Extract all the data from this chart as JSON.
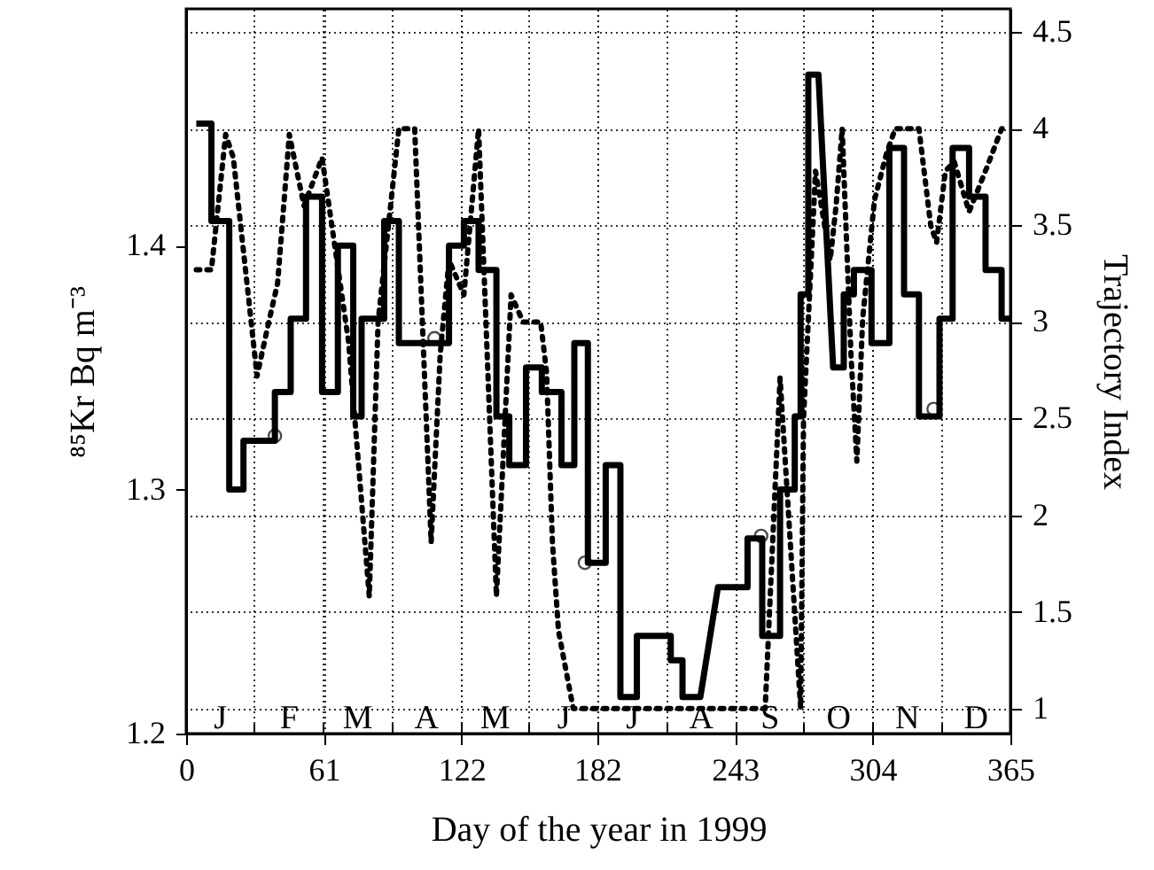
{
  "chart_data": {
    "type": "line",
    "xlabel": "Day of the year in 1999",
    "ylabel": "⁸⁵Kr  Bq m⁻³",
    "y2label": "Trajectory Index",
    "xlim": [
      0,
      365
    ],
    "xticks": [
      0,
      61,
      122,
      182,
      243,
      304,
      365
    ],
    "annotations": [
      "J",
      "F",
      "M",
      "A",
      "M",
      "J",
      "J",
      "A",
      "S",
      "O",
      "N",
      "D"
    ],
    "ylim": [
      1.2,
      1.497
    ],
    "yticks": [
      1.2,
      1.3,
      1.4
    ],
    "y2lim": [
      0.87,
      4.62
    ],
    "y2ticks": [
      1,
      1.5,
      2,
      2.5,
      3,
      3.5,
      4,
      4.5
    ],
    "grid": true,
    "series": [
      {
        "color": "#000000",
        "line_style": "solid",
        "x": [
          4.5,
          11.2,
          11.2,
          19.1,
          19.1,
          25.4,
          25.4,
          39.3,
          39.3,
          46.3,
          46.3,
          53.1,
          53.1,
          60.2,
          60.2,
          67.2,
          67.2,
          74,
          74,
          77.7,
          77.7,
          87.7,
          87.7,
          94.2,
          94.2,
          116.4,
          116.4,
          123,
          123,
          129.5,
          129.5,
          137.4,
          137.4,
          143.1,
          143.1,
          150.5,
          150.5,
          157.5,
          157.5,
          166.2,
          166.2,
          171.9,
          171.9,
          177.9,
          177.9,
          185.8,
          185.8,
          192.3,
          192.3,
          199.6,
          199.6,
          214.6,
          214.6,
          219.8,
          219.8,
          227.7,
          235.5,
          248.6,
          248.6,
          255.1,
          255.1,
          263,
          263,
          269.5,
          269.5,
          272.1,
          272.1,
          275.5,
          275.5,
          280,
          286.5,
          291.2,
          291.2,
          295.7,
          295.7,
          303.5,
          303.5,
          311.4,
          311.4,
          317.9,
          317.9,
          324.5,
          324.5,
          333.6,
          333.6,
          339.4,
          339.4,
          346.7,
          346.7,
          354,
          354,
          361.1,
          361.1,
          365
        ],
        "values": [
          1.45,
          1.45,
          1.41,
          1.41,
          1.3,
          1.3,
          1.32,
          1.32,
          1.34,
          1.34,
          1.37,
          1.37,
          1.42,
          1.42,
          1.34,
          1.34,
          1.4,
          1.4,
          1.33,
          1.33,
          1.37,
          1.37,
          1.41,
          1.41,
          1.36,
          1.36,
          1.4,
          1.4,
          1.41,
          1.41,
          1.39,
          1.39,
          1.33,
          1.33,
          1.31,
          1.31,
          1.35,
          1.35,
          1.34,
          1.34,
          1.31,
          1.31,
          1.36,
          1.36,
          1.27,
          1.27,
          1.31,
          1.31,
          1.215,
          1.215,
          1.24,
          1.24,
          1.23,
          1.23,
          1.215,
          1.215,
          1.26,
          1.26,
          1.28,
          1.28,
          1.24,
          1.24,
          1.3,
          1.3,
          1.33,
          1.33,
          1.38,
          1.38,
          1.47,
          1.47,
          1.35,
          1.35,
          1.38,
          1.38,
          1.39,
          1.39,
          1.36,
          1.36,
          1.44,
          1.44,
          1.38,
          1.38,
          1.33,
          1.33,
          1.37,
          1.37,
          1.44,
          1.44,
          1.42,
          1.42,
          1.39,
          1.39,
          1.37,
          1.37
        ]
      },
      {
        "color": "#000000",
        "line_style": "dotted",
        "axis": "y2",
        "x": [
          4.5,
          11.2,
          17.5,
          20.9,
          31.4,
          36.6,
          40.5,
          45.7,
          52.2,
          60.2,
          71.9,
          81.1,
          85,
          94.2,
          101.2,
          108.5,
          112.5,
          116.4,
          123,
          129.5,
          137.4,
          143.9,
          149.2,
          157,
          159.6,
          162.2,
          164.9,
          171.4,
          256.4,
          263,
          272.1,
          273.4,
          278.7,
          281.3,
          285.2,
          287.8,
          290.5,
          294.4,
          297,
          299.6,
          304.8,
          310.1,
          314,
          324.5,
          329.7,
          332.3,
          336.2,
          340.1,
          346.7,
          354.6,
          361.1,
          363.7
        ],
        "values": [
          3.27,
          3.27,
          3.97,
          3.85,
          2.72,
          3.0,
          3.2,
          3.97,
          3.6,
          3.85,
          2.9,
          1.58,
          3.0,
          4.0,
          4.0,
          1.86,
          2.83,
          3.32,
          3.14,
          4.0,
          1.58,
          3.14,
          3.0,
          3.0,
          2.74,
          1.86,
          1.4,
          1.0,
          1.0,
          2.71,
          1.0,
          2.5,
          3.78,
          3.6,
          3.32,
          3.6,
          4.0,
          2.83,
          2.28,
          3.02,
          3.63,
          3.87,
          4.0,
          4.0,
          3.5,
          3.41,
          3.78,
          3.83,
          3.57,
          3.8,
          4.0,
          4.0
        ]
      },
      {
        "type": "scatter",
        "color": "#000000",
        "marker": "circle",
        "x": [
          39.3,
          110,
          176.6,
          254.6,
          331
        ],
        "values": [
          1.322,
          1.362,
          1.27,
          1.281,
          1.333
        ]
      }
    ]
  }
}
